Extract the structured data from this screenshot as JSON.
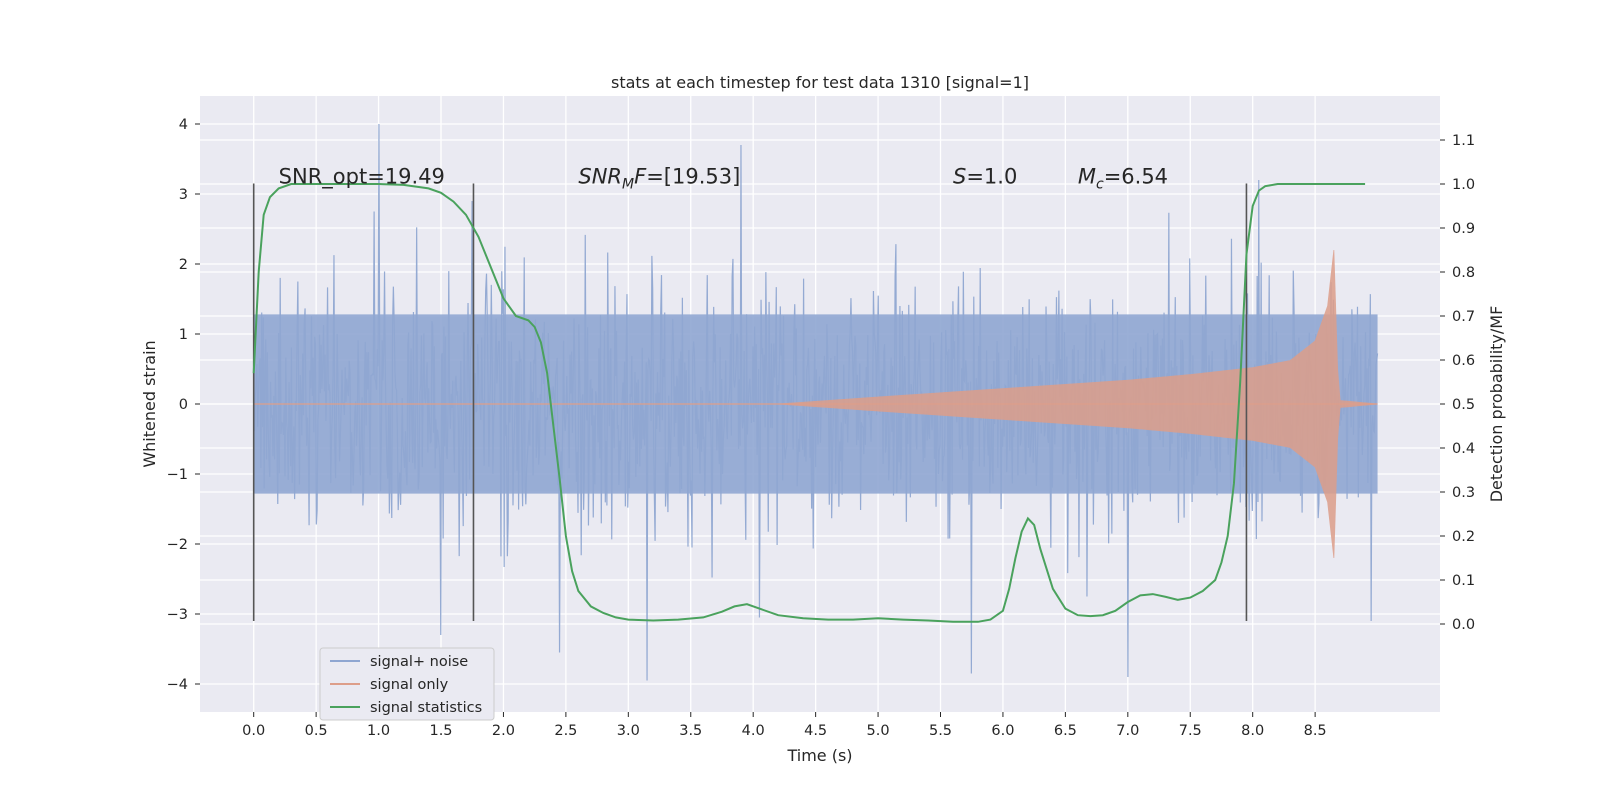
{
  "chart_data": {
    "type": "line",
    "title": "stats at each timestep for test data 1310 [signal=1]",
    "xlabel": "Time (s)",
    "ylabel_left": "Whitened strain",
    "ylabel_right": "Detection probability/MF",
    "xlim": [
      -0.43,
      9.5
    ],
    "ylim_left": [
      -4.4,
      4.4
    ],
    "ylim_right": [
      -0.2,
      1.2
    ],
    "x_ticks": [
      0.0,
      0.5,
      1.0,
      1.5,
      2.0,
      2.5,
      3.0,
      3.5,
      4.0,
      4.5,
      5.0,
      5.5,
      6.0,
      6.5,
      7.0,
      7.5,
      8.0,
      8.5
    ],
    "x_tick_labels": [
      "0.0",
      "0.5",
      "1.0",
      "1.5",
      "2.0",
      "2.5",
      "3.0",
      "3.5",
      "4.0",
      "4.5",
      "5.0",
      "5.5",
      "6.0",
      "6.5",
      "7.0",
      "7.5",
      "8.0",
      "8.5"
    ],
    "y_left_ticks": [
      -4,
      -3,
      -2,
      -1,
      0,
      1,
      2,
      3,
      4
    ],
    "y_left_tick_labels": [
      "−4",
      "−3",
      "−2",
      "−1",
      "0",
      "1",
      "2",
      "3",
      "4"
    ],
    "y_right_ticks": [
      0.0,
      0.1,
      0.2,
      0.3,
      0.4,
      0.5,
      0.6,
      0.7,
      0.8,
      0.9,
      1.0,
      1.1
    ],
    "y_right_tick_labels": [
      "0.0",
      "0.1",
      "0.2",
      "0.3",
      "0.4",
      "0.5",
      "0.6",
      "0.7",
      "0.8",
      "0.9",
      "1.0",
      "1.1"
    ],
    "grid": true,
    "legend_placement": "lower-left",
    "annotations": [
      {
        "text": "SNR_opt=19.49",
        "x": 0.2,
        "y": 3.25
      },
      {
        "text": "SNR_MF=[19.53]",
        "x": 2.6,
        "y": 3.25
      },
      {
        "text": "S=1.0",
        "x": 5.6,
        "y": 3.25
      },
      {
        "text": "M_c=6.54",
        "x": 6.6,
        "y": 3.25
      }
    ],
    "vertical_lines": [
      {
        "x": 0.0,
        "y0": -3.1,
        "y1": 3.15
      },
      {
        "x": 1.76,
        "y0": -3.1,
        "y1": 3.15
      },
      {
        "x": 7.95,
        "y0": -3.1,
        "y1": 3.15
      }
    ],
    "series": [
      {
        "name": "signal+ noise",
        "axis": "left",
        "color": "#8fa6d1",
        "envelope": {
          "x_range": [
            0.0,
            9.0
          ],
          "typical_amplitude": 2.2,
          "outliers": [
            {
              "x": 1.0,
              "y": 4.0
            },
            {
              "x": 3.9,
              "y": 3.7
            },
            {
              "x": 2.45,
              "y": -3.55
            },
            {
              "x": 3.15,
              "y": -3.95
            },
            {
              "x": 5.75,
              "y": -3.85
            },
            {
              "x": 7.0,
              "y": -3.9
            },
            {
              "x": 1.5,
              "y": -3.3
            },
            {
              "x": 8.95,
              "y": -3.1
            },
            {
              "x": 8.05,
              "y": 3.2
            },
            {
              "x": 1.75,
              "y": 2.9
            },
            {
              "x": 4.05,
              "y": -3.05
            }
          ]
        }
      },
      {
        "name": "signal only",
        "axis": "left",
        "color": "#dd9e8a",
        "envelope": {
          "x": [
            0.0,
            4.2,
            5.0,
            6.0,
            7.0,
            7.5,
            8.0,
            8.3,
            8.5,
            8.6,
            8.65,
            8.68,
            8.7,
            9.0
          ],
          "amplitude": [
            0.0,
            0.0,
            0.1,
            0.22,
            0.34,
            0.42,
            0.52,
            0.62,
            0.9,
            1.4,
            2.2,
            0.5,
            0.05,
            0.0
          ]
        }
      },
      {
        "name": "signal statistics",
        "axis": "right",
        "color": "#4aa25d",
        "x": [
          0.0,
          0.04,
          0.08,
          0.13,
          0.2,
          0.3,
          0.4,
          0.6,
          0.8,
          1.0,
          1.2,
          1.4,
          1.5,
          1.6,
          1.7,
          1.8,
          1.9,
          2.0,
          2.1,
          2.2,
          2.25,
          2.3,
          2.35,
          2.4,
          2.45,
          2.5,
          2.55,
          2.6,
          2.7,
          2.8,
          2.9,
          3.0,
          3.2,
          3.4,
          3.6,
          3.75,
          3.85,
          3.95,
          4.05,
          4.2,
          4.4,
          4.6,
          4.8,
          5.0,
          5.2,
          5.4,
          5.6,
          5.7,
          5.8,
          5.9,
          6.0,
          6.05,
          6.1,
          6.15,
          6.2,
          6.25,
          6.3,
          6.4,
          6.5,
          6.6,
          6.7,
          6.8,
          6.9,
          7.0,
          7.1,
          7.2,
          7.3,
          7.4,
          7.5,
          7.6,
          7.7,
          7.75,
          7.8,
          7.85,
          7.9,
          7.95,
          8.0,
          8.05,
          8.1,
          8.2,
          8.5,
          8.9
        ],
        "y": [
          0.57,
          0.8,
          0.93,
          0.97,
          0.99,
          1.0,
          1.0,
          1.0,
          1.0,
          1.0,
          0.998,
          0.99,
          0.98,
          0.96,
          0.93,
          0.88,
          0.81,
          0.74,
          0.7,
          0.69,
          0.675,
          0.64,
          0.57,
          0.45,
          0.33,
          0.2,
          0.12,
          0.075,
          0.04,
          0.025,
          0.015,
          0.01,
          0.008,
          0.01,
          0.015,
          0.028,
          0.04,
          0.045,
          0.035,
          0.02,
          0.013,
          0.01,
          0.01,
          0.013,
          0.01,
          0.008,
          0.005,
          0.005,
          0.005,
          0.01,
          0.03,
          0.08,
          0.15,
          0.21,
          0.24,
          0.225,
          0.17,
          0.08,
          0.035,
          0.02,
          0.018,
          0.02,
          0.03,
          0.05,
          0.065,
          0.068,
          0.062,
          0.055,
          0.06,
          0.075,
          0.1,
          0.14,
          0.2,
          0.32,
          0.55,
          0.84,
          0.95,
          0.985,
          0.995,
          1.0,
          1.0,
          1.0
        ]
      }
    ]
  }
}
